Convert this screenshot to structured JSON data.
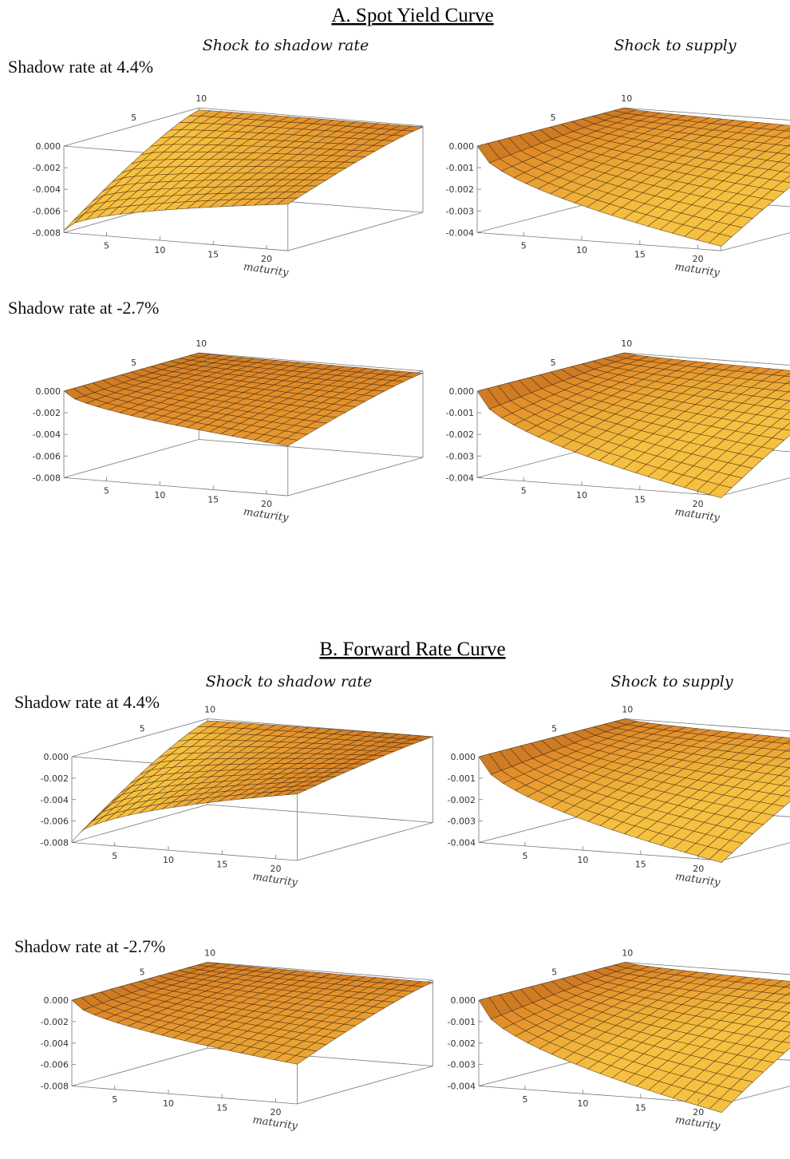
{
  "sections": [
    {
      "title": "A. Spot Yield Curve",
      "columns": [
        "Shock to shadow rate",
        "Shock to supply"
      ],
      "rows": [
        "Shadow rate at 4.4%",
        "Shadow rate at -2.7%"
      ]
    },
    {
      "title": "B. Forward Rate Curve",
      "columns": [
        "Shock to shadow rate",
        "Shock to supply"
      ],
      "rows": [
        "Shadow rate at 4.4%",
        "Shadow rate at -2.7%"
      ]
    }
  ],
  "colors": {
    "surface_dark": "#a85a1e",
    "surface_mid": "#e08a28",
    "surface_light": "#f6c040",
    "mesh": "#3a2410",
    "box": "#777777"
  },
  "chart_data": [
    {
      "type": "surface3d",
      "section": "A. Spot Yield Curve",
      "column": "Shock to shadow rate",
      "row": "Shadow rate at 4.4%",
      "xlabel": "maturity",
      "x_ticks": [
        5,
        10,
        15,
        20
      ],
      "xlim": [
        1,
        22
      ],
      "y_ticks": [
        5,
        10
      ],
      "ylim": [
        0,
        10
      ],
      "z_ticks": [
        "0.000",
        "-0.002",
        "-0.004",
        "-0.006",
        "-0.008"
      ],
      "zlim": [
        -0.008,
        0.0
      ],
      "corner_values": {
        "short_maturity_near": -0.0078,
        "long_maturity_near": -0.0037,
        "short_maturity_far": -0.0002,
        "long_maturity_far": -0.0001
      }
    },
    {
      "type": "surface3d",
      "section": "A. Spot Yield Curve",
      "column": "Shock to supply",
      "row": "Shadow rate at 4.4%",
      "xlabel": "maturity",
      "x_ticks": [
        5,
        10,
        15,
        20
      ],
      "xlim": [
        1,
        22
      ],
      "y_ticks": [
        5,
        10
      ],
      "ylim": [
        0,
        10
      ],
      "z_ticks": [
        "0.000",
        "-0.001",
        "-0.002",
        "-0.003",
        "-0.004"
      ],
      "zlim": [
        -0.004,
        0.0
      ],
      "corner_values": {
        "short_maturity_near": 0.0,
        "long_maturity_near": -0.0038,
        "short_maturity_far": 0.0,
        "long_maturity_far": -0.0003
      }
    },
    {
      "type": "surface3d",
      "section": "A. Spot Yield Curve",
      "column": "Shock to shadow rate",
      "row": "Shadow rate at -2.7%",
      "xlabel": "maturity",
      "x_ticks": [
        5,
        10,
        15,
        20
      ],
      "xlim": [
        1,
        22
      ],
      "y_ticks": [
        5,
        10
      ],
      "ylim": [
        0,
        10
      ],
      "z_ticks": [
        "0.000",
        "-0.002",
        "-0.004",
        "-0.006",
        "-0.008"
      ],
      "zlim": [
        -0.008,
        0.0
      ],
      "corner_values": {
        "short_maturity_near": 0.0,
        "long_maturity_near": -0.0034,
        "short_maturity_far": 0.0,
        "long_maturity_far": -0.0002
      }
    },
    {
      "type": "surface3d",
      "section": "A. Spot Yield Curve",
      "column": "Shock to supply",
      "row": "Shadow rate at -2.7%",
      "xlabel": "maturity",
      "x_ticks": [
        5,
        10,
        15,
        20
      ],
      "xlim": [
        1,
        22
      ],
      "y_ticks": [
        5,
        10
      ],
      "ylim": [
        0,
        10
      ],
      "z_ticks": [
        "0.000",
        "-0.001",
        "-0.002",
        "-0.003",
        "-0.004"
      ],
      "zlim": [
        -0.004,
        0.0
      ],
      "corner_values": {
        "short_maturity_near": 0.0,
        "long_maturity_near": -0.0041,
        "short_maturity_far": 0.0,
        "long_maturity_far": -0.0003
      }
    },
    {
      "type": "surface3d",
      "section": "B. Forward Rate Curve",
      "column": "Shock to shadow rate",
      "row": "Shadow rate at 4.4%",
      "xlabel": "maturity",
      "x_ticks": [
        5,
        10,
        15,
        20
      ],
      "xlim": [
        1,
        22
      ],
      "y_ticks": [
        5,
        10
      ],
      "ylim": [
        0,
        10
      ],
      "z_ticks": [
        "0.000",
        "-0.002",
        "-0.004",
        "-0.006",
        "-0.008"
      ],
      "zlim": [
        -0.008,
        0.0
      ],
      "corner_values": {
        "short_maturity_near": -0.0079,
        "long_maturity_near": -0.0018,
        "short_maturity_far": -0.0002,
        "long_maturity_far": 0.0
      }
    },
    {
      "type": "surface3d",
      "section": "B. Forward Rate Curve",
      "column": "Shock to supply",
      "row": "Shadow rate at 4.4%",
      "xlabel": "maturity",
      "x_ticks": [
        5,
        10,
        15,
        20
      ],
      "xlim": [
        1,
        22
      ],
      "y_ticks": [
        5,
        10
      ],
      "ylim": [
        0,
        10
      ],
      "z_ticks": [
        "0.000",
        "-0.001",
        "-0.002",
        "-0.003",
        "-0.004"
      ],
      "zlim": [
        -0.004,
        0.0
      ],
      "corner_values": {
        "short_maturity_near": 0.0,
        "long_maturity_near": -0.0041,
        "short_maturity_far": 0.0,
        "long_maturity_far": -0.0004
      }
    },
    {
      "type": "surface3d",
      "section": "B. Forward Rate Curve",
      "column": "Shock to shadow rate",
      "row": "Shadow rate at -2.7%",
      "xlabel": "maturity",
      "x_ticks": [
        5,
        10,
        15,
        20
      ],
      "xlim": [
        1,
        22
      ],
      "y_ticks": [
        5,
        10
      ],
      "ylim": [
        0,
        10
      ],
      "z_ticks": [
        "0.000",
        "-0.002",
        "-0.004",
        "-0.006",
        "-0.008"
      ],
      "zlim": [
        -0.008,
        0.0
      ],
      "corner_values": {
        "short_maturity_near": 0.0,
        "long_maturity_near": -0.0043,
        "short_maturity_far": 0.0,
        "long_maturity_far": -0.0002
      }
    },
    {
      "type": "surface3d",
      "section": "B. Forward Rate Curve",
      "column": "Shock to supply",
      "row": "Shadow rate at -2.7%",
      "xlabel": "maturity",
      "x_ticks": [
        5,
        10,
        15,
        20
      ],
      "xlim": [
        1,
        22
      ],
      "y_ticks": [
        5,
        10
      ],
      "ylim": [
        0,
        10
      ],
      "z_ticks": [
        "0.000",
        "-0.001",
        "-0.002",
        "-0.003",
        "-0.004"
      ],
      "zlim": [
        -0.004,
        0.0
      ],
      "corner_values": {
        "short_maturity_near": 0.0,
        "long_maturity_near": -0.0044,
        "short_maturity_far": 0.0,
        "long_maturity_far": -0.0004
      }
    }
  ]
}
